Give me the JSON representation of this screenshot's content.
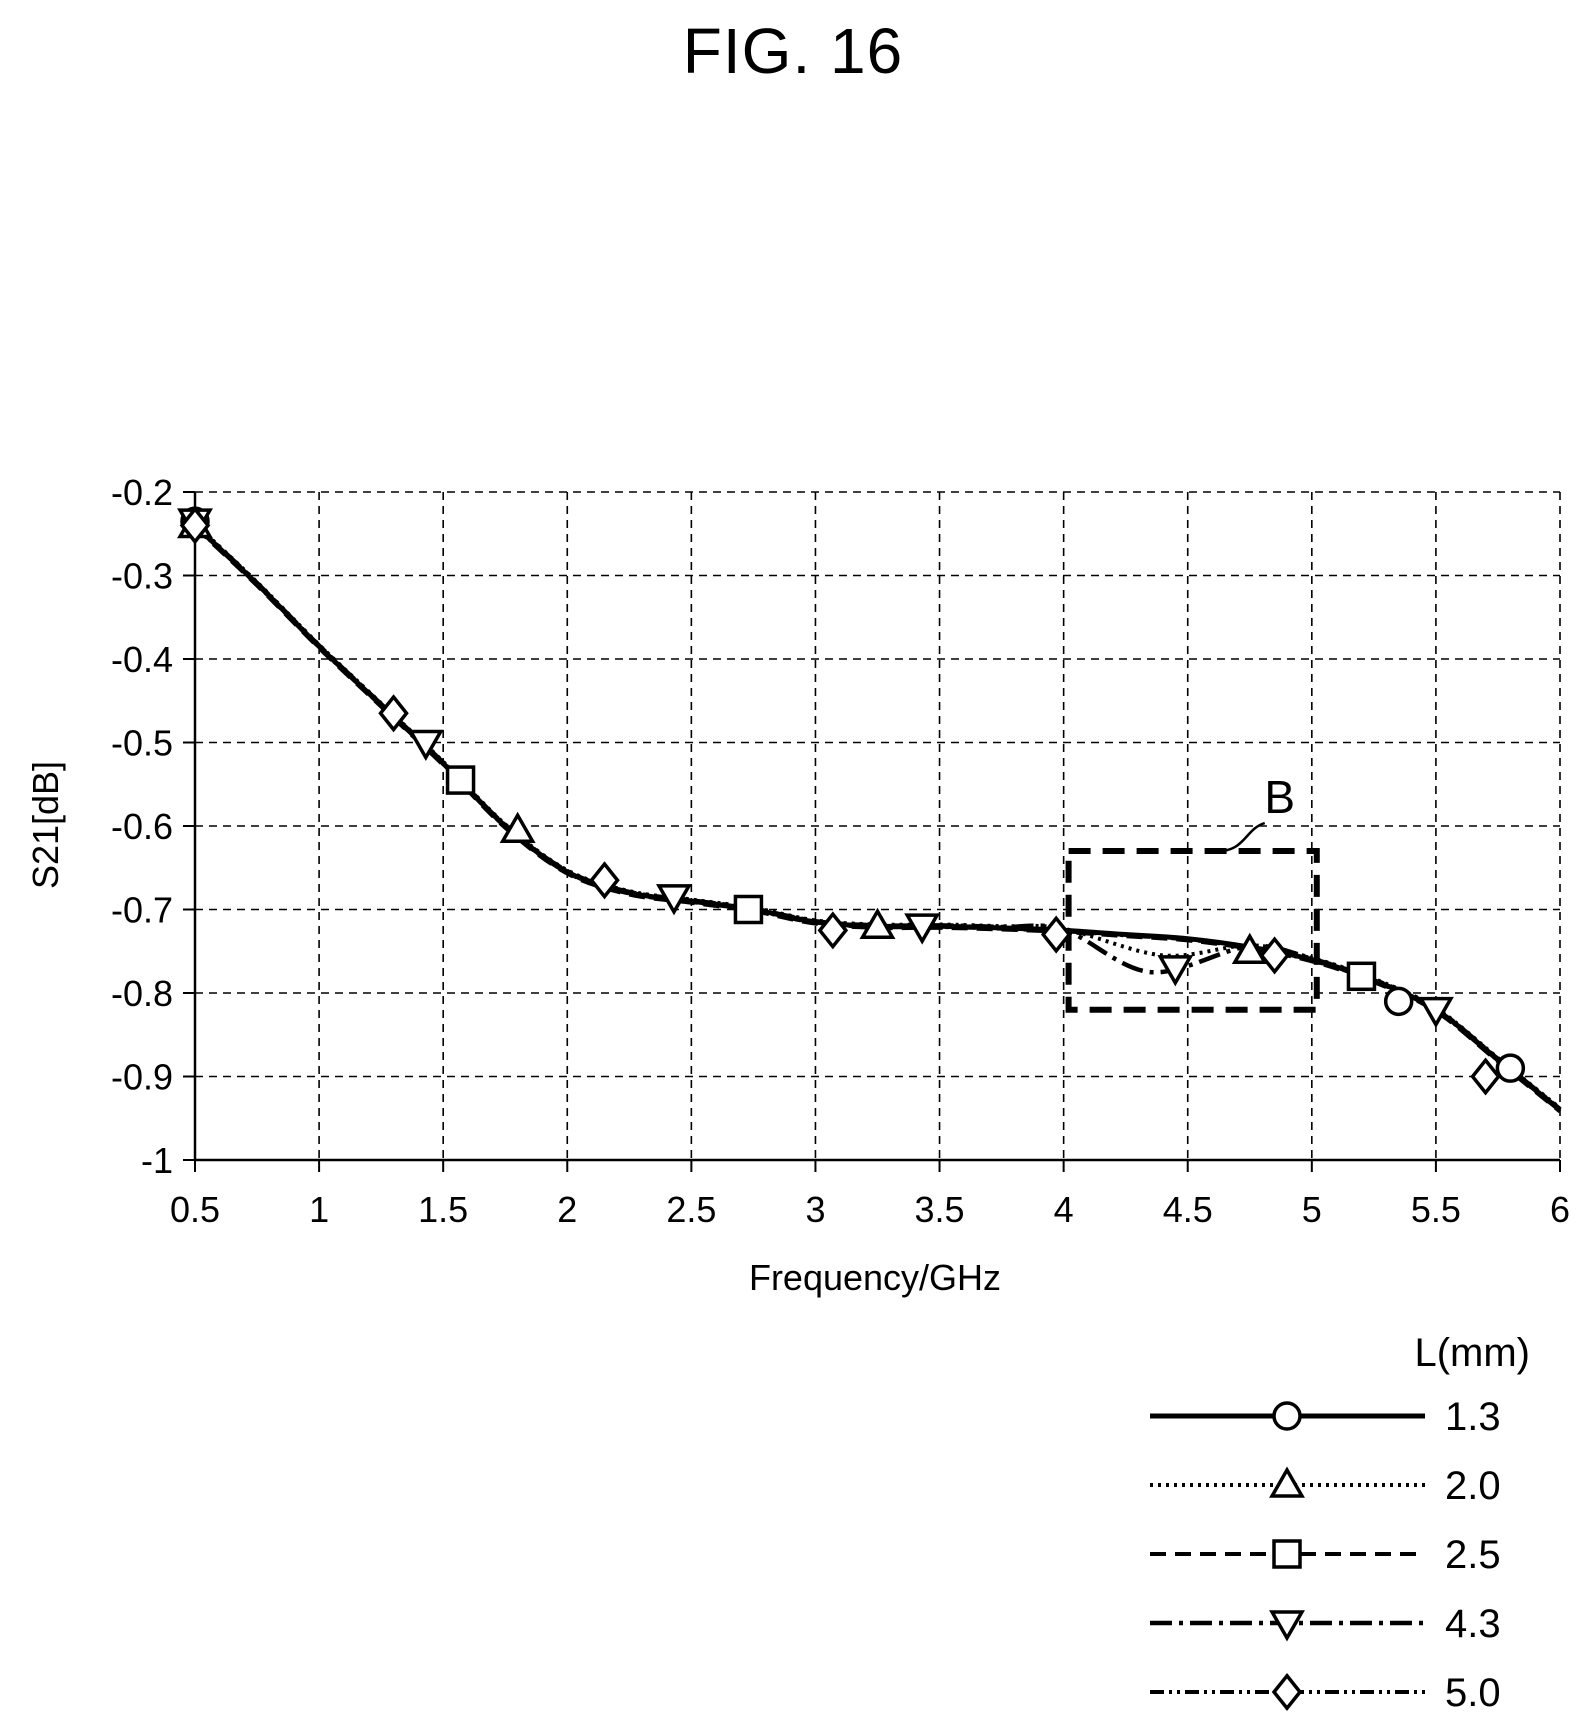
{
  "figure": {
    "title": "FIG. 16"
  },
  "chart_data": {
    "type": "line",
    "xlabel": "Frequency/GHz",
    "ylabel": "S21[dB]",
    "xlim": [
      0.5,
      6
    ],
    "ylim": [
      -1,
      -0.2
    ],
    "xticks": [
      "0.5",
      "1",
      "1.5",
      "2",
      "2.5",
      "3",
      "3.5",
      "4",
      "4.5",
      "5",
      "5.5",
      "6"
    ],
    "yticks": [
      "-0.2",
      "-0.3",
      "-0.4",
      "-0.5",
      "-0.6",
      "-0.7",
      "-0.8",
      "-0.9",
      "-1"
    ],
    "grid": true,
    "legend": {
      "title": "L(mm)",
      "position": "bottom-right"
    },
    "base_curve": {
      "x": [
        0.5,
        0.75,
        1.0,
        1.25,
        1.5,
        1.75,
        2.0,
        2.25,
        2.5,
        2.75,
        3.0,
        3.25,
        3.5,
        3.75,
        4.0,
        4.25,
        4.5,
        4.75,
        5.0,
        5.25,
        5.5,
        5.75,
        6.0
      ],
      "y": [
        -0.24,
        -0.31,
        -0.385,
        -0.455,
        -0.525,
        -0.6,
        -0.655,
        -0.68,
        -0.69,
        -0.7,
        -0.715,
        -0.72,
        -0.72,
        -0.722,
        -0.725,
        -0.73,
        -0.735,
        -0.745,
        -0.76,
        -0.785,
        -0.82,
        -0.88,
        -0.94
      ]
    },
    "series": [
      {
        "name": "1.3",
        "line_style": "solid",
        "marker": "circle",
        "marker_points": [
          [
            0.5,
            -0.235
          ],
          [
            5.35,
            -0.81
          ],
          [
            5.8,
            -0.89
          ]
        ]
      },
      {
        "name": "2.0",
        "line_style": "dotted",
        "marker": "triangle-up",
        "marker_points": [
          [
            0.5,
            -0.24
          ],
          [
            1.8,
            -0.605
          ],
          [
            3.25,
            -0.72
          ],
          [
            4.75,
            -0.75
          ]
        ],
        "dip": {
          "x": 4.4,
          "y": -0.755
        }
      },
      {
        "name": "2.5",
        "line_style": "dashed",
        "marker": "square",
        "marker_points": [
          [
            1.57,
            -0.545
          ],
          [
            2.73,
            -0.7
          ],
          [
            5.2,
            -0.78
          ]
        ]
      },
      {
        "name": "4.3",
        "line_style": "dash-dot",
        "marker": "triangle-down",
        "marker_points": [
          [
            0.5,
            -0.235
          ],
          [
            1.43,
            -0.5
          ],
          [
            2.43,
            -0.685
          ],
          [
            3.43,
            -0.72
          ],
          [
            4.45,
            -0.77
          ],
          [
            5.5,
            -0.82
          ]
        ],
        "dip": {
          "x": 4.35,
          "y": -0.775
        }
      },
      {
        "name": "5.0",
        "line_style": "dash-dot-dot",
        "marker": "diamond",
        "marker_points": [
          [
            0.5,
            -0.24
          ],
          [
            1.3,
            -0.465
          ],
          [
            2.15,
            -0.665
          ],
          [
            3.07,
            -0.725
          ],
          [
            3.97,
            -0.73
          ],
          [
            4.85,
            -0.755
          ],
          [
            5.7,
            -0.9
          ]
        ]
      }
    ],
    "callout": {
      "label": "B",
      "box": {
        "x0": 4.02,
        "x1": 5.02,
        "y0": -0.63,
        "y1": -0.82
      }
    }
  }
}
